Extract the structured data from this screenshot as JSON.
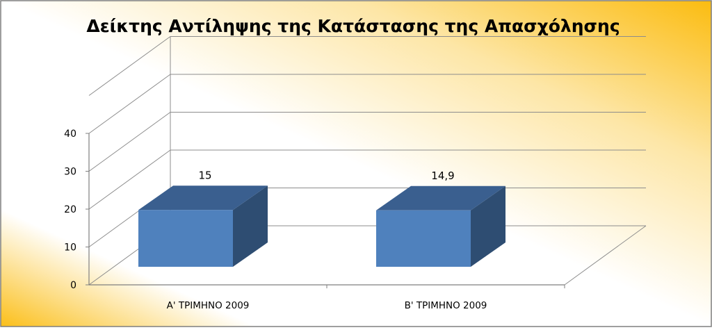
{
  "chart_data": {
    "type": "bar",
    "title": "Δείκτης Αντίληψης της Κατάστασης της Απασχόλησης",
    "categories": [
      "Α' ΤΡΙΜΗΝΟ 2009",
      "Β' ΤΡΙΜΗΝΟ 2009"
    ],
    "values": [
      15,
      14.9
    ],
    "value_labels": [
      "15",
      "14,9"
    ],
    "y_ticks": [
      "0",
      "10",
      "20",
      "30",
      "40"
    ],
    "ylim": [
      0,
      40
    ],
    "grid": true,
    "legend": "none",
    "colors": {
      "bar_front": "#4f81bd",
      "bar_top": "#3a5f8f",
      "bar_side": "#2e4d72",
      "background_accent": "#fbbf1a"
    }
  }
}
